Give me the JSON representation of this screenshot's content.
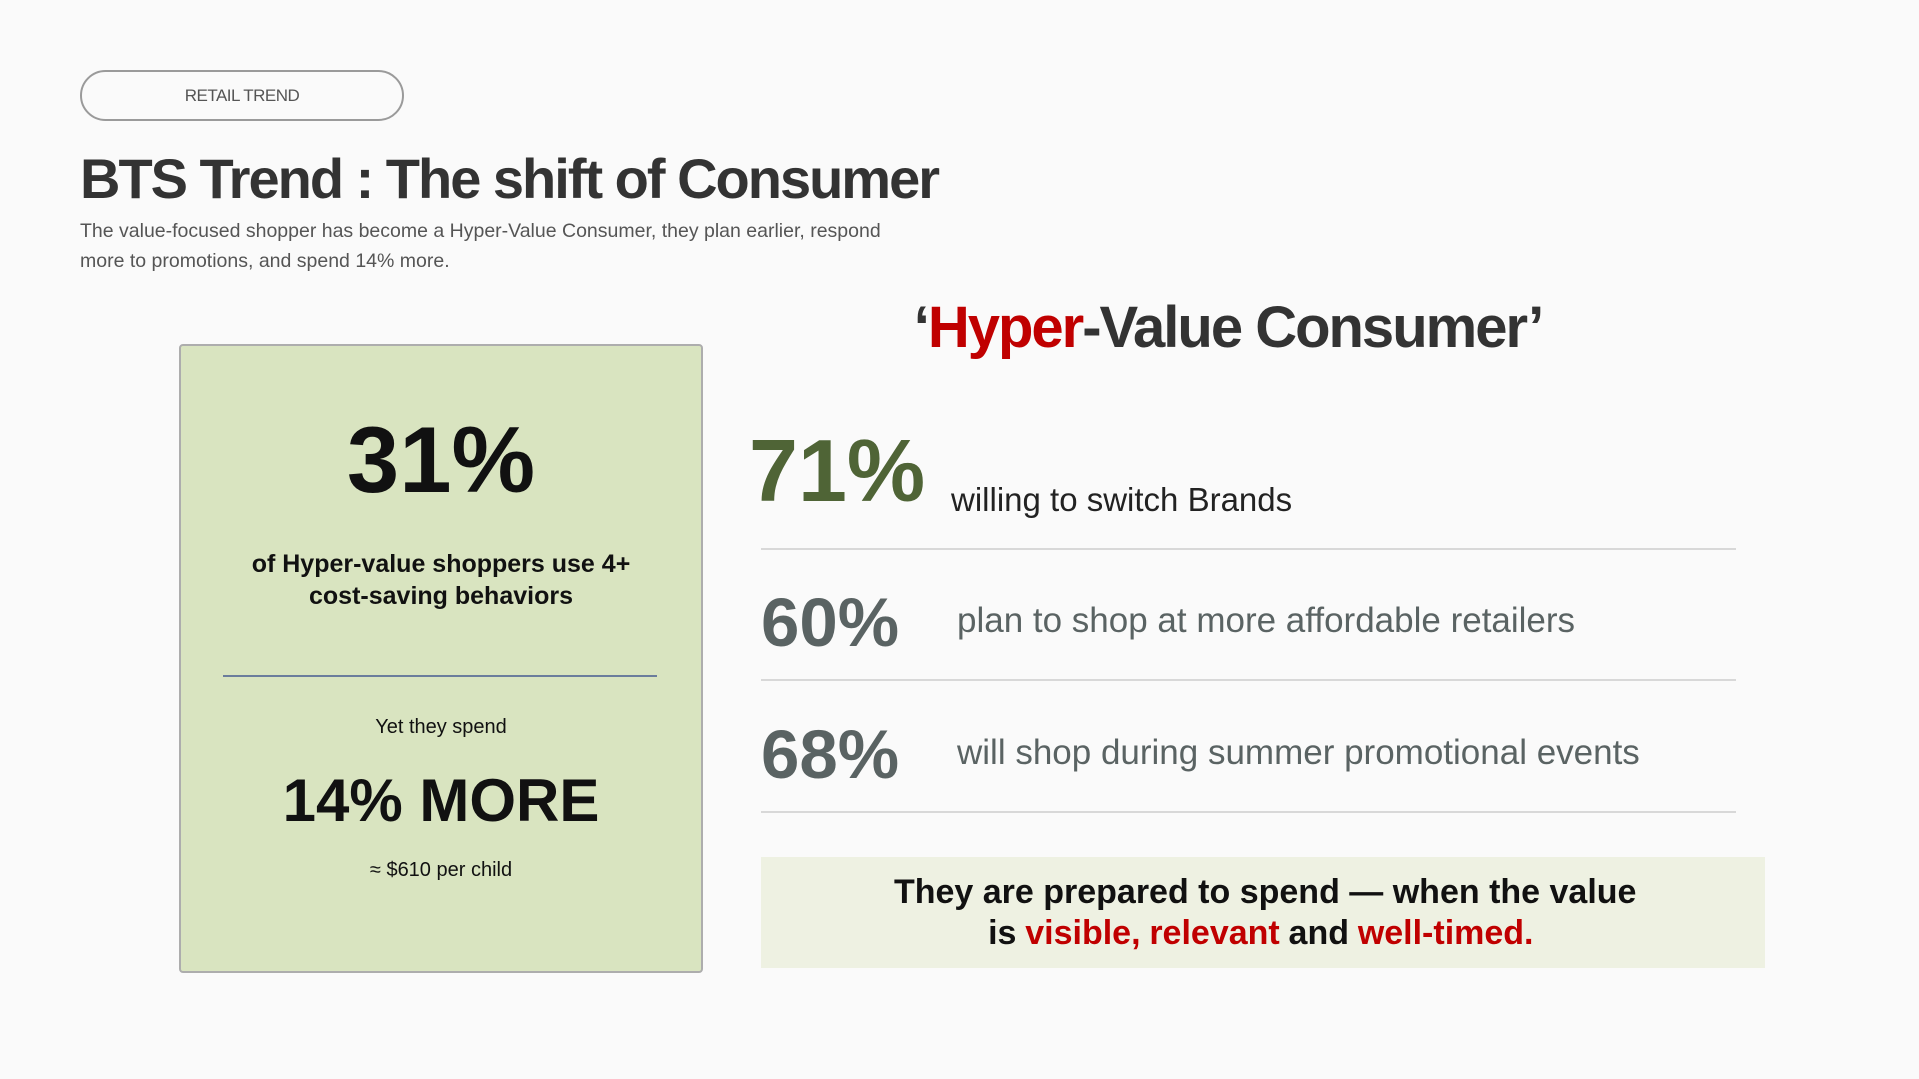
{
  "tag": "RETAIL TREND",
  "header": {
    "title": "BTS Trend : The shift of Consumer",
    "subtitle": "The  value-focused shopper has become a Hyper-Value Consumer, they plan earlier, respond more to promotions, and spend 14% more."
  },
  "card": {
    "stat": "31%",
    "description": "of Hyper-value shoppers use 4+ cost-saving behaviors",
    "lead": "Yet they spend",
    "highlight": "14% MORE",
    "note": "≈ $610 per child"
  },
  "heading": [
    {
      "text": "‘"
    },
    {
      "text": "Hyper",
      "accent": true
    },
    {
      "text": "-Value Consumer’"
    }
  ],
  "stats": [
    {
      "value": "71%",
      "label": "willing to switch Brands"
    },
    {
      "value": "60%",
      "label": "plan to shop at more affordable retailers"
    },
    {
      "value": "68%",
      "label": "will shop during summer promotional events"
    }
  ],
  "callout": [
    {
      "text": "They are prepared to spend — when the value is"
    },
    {
      "text": "visible,",
      "accent": true
    },
    {
      "text": "relevant",
      "accent": true
    },
    {
      "text": "and"
    },
    {
      "text": "well-timed.",
      "accent": true
    }
  ]
}
